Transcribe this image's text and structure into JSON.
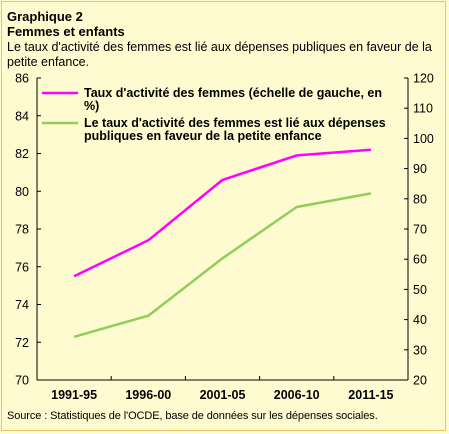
{
  "header": {
    "kicker": "Graphique 2",
    "title": "Femmes et enfants",
    "subtitle": "Le taux d'activité des femmes est lié aux dépenses publiques en faveur de la petite enfance."
  },
  "footer": {
    "source": "Source : Statistiques de l'OCDE, base de données sur les dépenses sociales."
  },
  "chart_data": {
    "type": "line",
    "categories": [
      "1991-95",
      "1996-00",
      "2001-05",
      "2006-10",
      "2011-15"
    ],
    "y_left": {
      "ylim": [
        70,
        86
      ],
      "ticks": [
        70,
        72,
        74,
        76,
        78,
        80,
        82,
        84,
        86
      ]
    },
    "y_right": {
      "ylim": [
        20,
        120
      ],
      "ticks": [
        20,
        30,
        40,
        50,
        60,
        70,
        80,
        90,
        100,
        110,
        120
      ]
    },
    "grid": false,
    "legend_placement": "top-left",
    "series": [
      {
        "name": "Taux d'activité des femmes (échelle de gauche, en %)",
        "legend_lines": [
          "Taux d'activité des femmes (échelle de gauche, en",
          "%)"
        ],
        "axis": "left",
        "color": "#ff00ff",
        "values": [
          75.5,
          77.4,
          80.6,
          81.9,
          82.2
        ]
      },
      {
        "name": "Le taux d'activité des femmes est lié aux dépenses publiques en faveur de la petite enfance",
        "legend_lines": [
          "Le taux d'activité des femmes est lié aux dépenses",
          "publiques en faveur de la petite enfance"
        ],
        "axis": "right",
        "color": "#8fce5a",
        "values": [
          34.3,
          41.3,
          60.3,
          77.3,
          81.8
        ]
      }
    ]
  }
}
